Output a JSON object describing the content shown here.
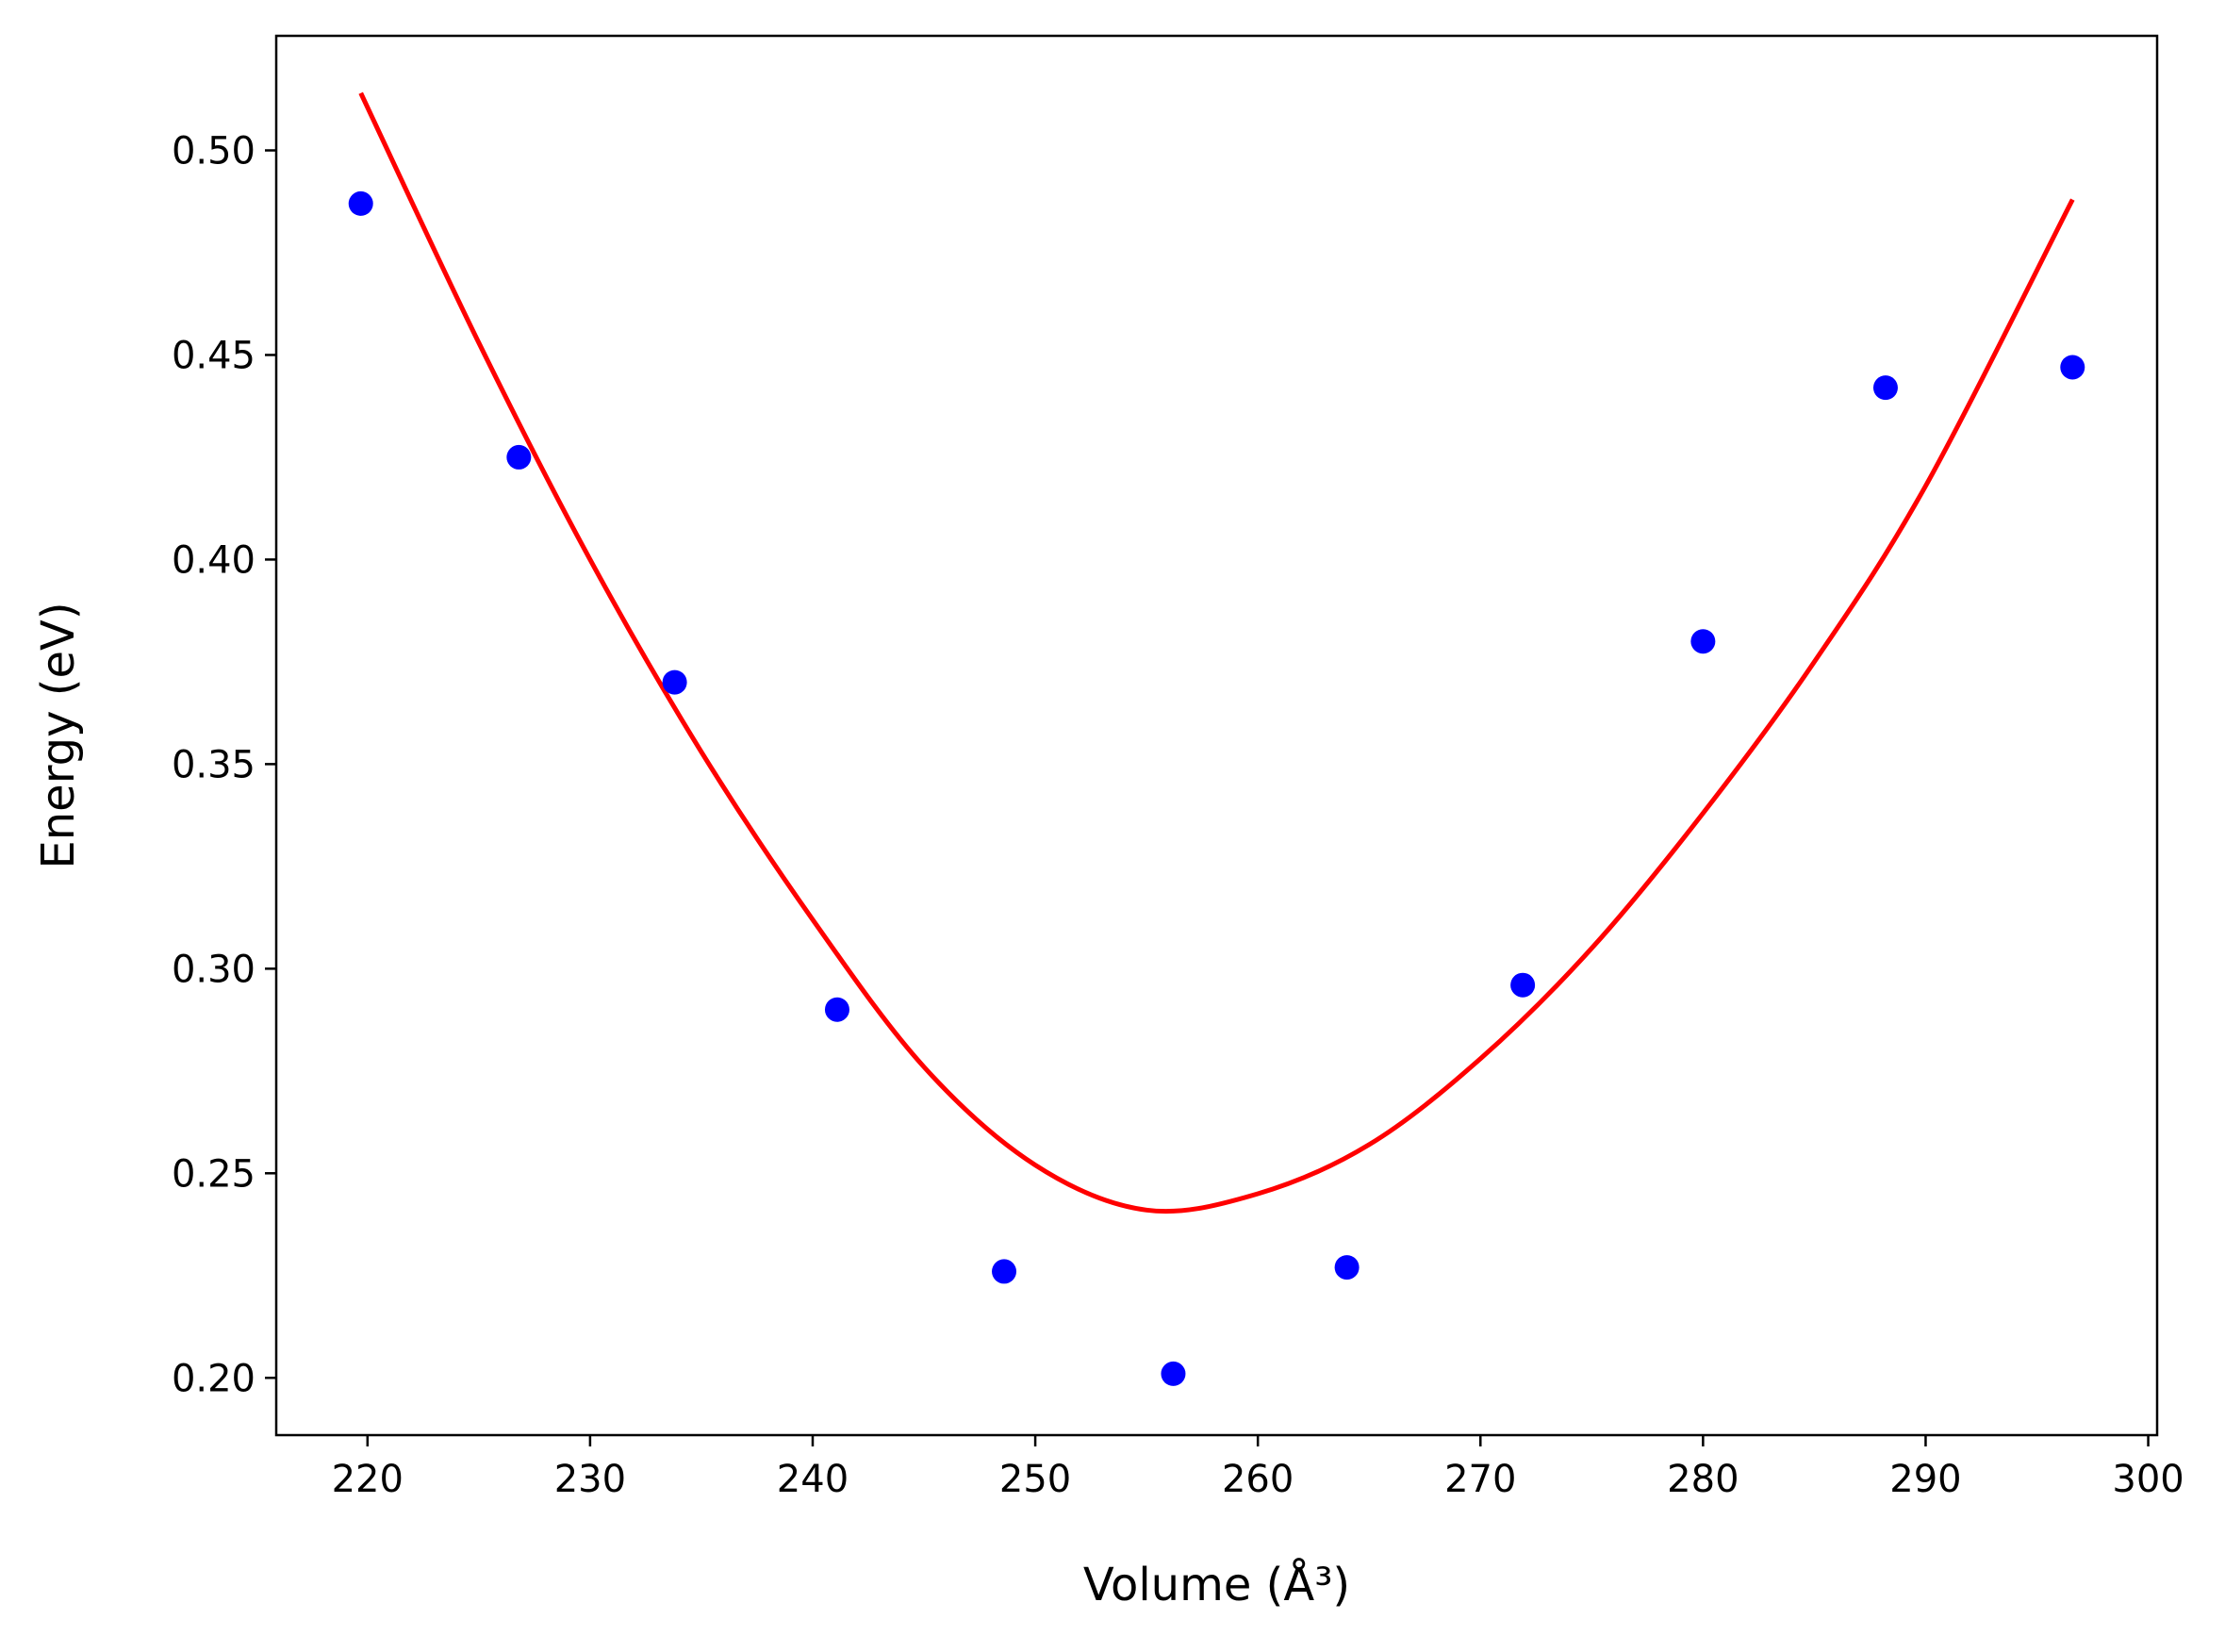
{
  "chart_data": {
    "type": "scatter",
    "title": "",
    "xlabel": "Volume (Å³)",
    "ylabel": "Energy (eV)",
    "xlim": [
      215.9,
      300.4
    ],
    "ylim": [
      0.186,
      0.528
    ],
    "x_ticks": [
      "220",
      "230",
      "240",
      "250",
      "260",
      "270",
      "280",
      "290",
      "300"
    ],
    "y_ticks": [
      "0.20",
      "0.25",
      "0.30",
      "0.35",
      "0.40",
      "0.45",
      "0.50"
    ],
    "grid": false,
    "legend": "none",
    "colors": {
      "points": "#0000ff",
      "fit": "#ff0000"
    },
    "series": [
      {
        "kind": "points",
        "x": [
          219.7,
          226.8,
          233.8,
          241.1,
          248.6,
          256.2,
          264.0,
          271.9,
          280.0,
          288.2,
          296.6
        ],
        "y": [
          0.487,
          0.425,
          0.37,
          0.29,
          0.226,
          0.201,
          0.227,
          0.296,
          0.38,
          0.442,
          0.447
        ]
      },
      {
        "kind": "fit-line",
        "x": [
          219.7,
          225.0,
          230.0,
          235.0,
          240.0,
          245.0,
          250.0,
          255.0,
          260.0,
          265.0,
          270.0,
          275.0,
          280.0,
          285.0,
          290.0,
          296.6
        ],
        "y": [
          0.514,
          0.453,
          0.4,
          0.353,
          0.312,
          0.276,
          0.252,
          0.241,
          0.245,
          0.257,
          0.278,
          0.305,
          0.338,
          0.375,
          0.418,
          0.488
        ]
      }
    ]
  }
}
